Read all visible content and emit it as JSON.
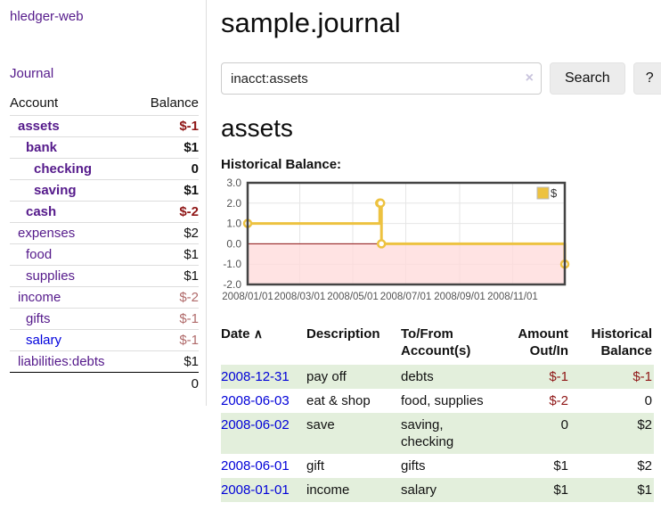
{
  "app": {
    "brand": "hledger-web",
    "nav_journal": "Journal"
  },
  "sidebar": {
    "header": {
      "account": "Account",
      "balance": "Balance"
    },
    "rows": [
      {
        "account": "assets",
        "balance": "$-1"
      },
      {
        "account": "bank",
        "balance": "$1"
      },
      {
        "account": "checking",
        "balance": "0"
      },
      {
        "account": "saving",
        "balance": "$1"
      },
      {
        "account": "cash",
        "balance": "$-2"
      },
      {
        "account": "expenses",
        "balance": "$2"
      },
      {
        "account": "food",
        "balance": "$1"
      },
      {
        "account": "supplies",
        "balance": "$1"
      },
      {
        "account": "income",
        "balance": "$-2"
      },
      {
        "account": "gifts",
        "balance": "$-1"
      },
      {
        "account": "salary",
        "balance": "$-1"
      },
      {
        "account": "liabilities:debts",
        "balance": "$1"
      }
    ],
    "total": "0"
  },
  "header": {
    "title": "sample.journal"
  },
  "search": {
    "value": "inacct:assets",
    "clear_icon": "×",
    "button": "Search",
    "help_button": "?"
  },
  "account_page": {
    "title": "assets",
    "chart_label": "Historical Balance:"
  },
  "chart_data": {
    "type": "line",
    "step": true,
    "title": "Historical Balance",
    "legend": "$",
    "legend_position": "top-right",
    "grid": true,
    "xlim": [
      "2008-01-01",
      "2008-12-31"
    ],
    "ylim": [
      -2.0,
      3.0
    ],
    "x_ticks": [
      "2008/01/01",
      "2008/03/01",
      "2008/05/01",
      "2008/07/01",
      "2008/09/01",
      "2008/11/01"
    ],
    "y_ticks": [
      3.0,
      2.0,
      1.0,
      0.0,
      -1.0,
      -2.0
    ],
    "series": [
      {
        "name": "$",
        "color": "#edc240",
        "points": [
          [
            "2008-01-01",
            1
          ],
          [
            "2008-06-01",
            2
          ],
          [
            "2008-06-02",
            2
          ],
          [
            "2008-06-03",
            0
          ],
          [
            "2008-12-31",
            -1
          ]
        ]
      }
    ],
    "negative_region_color": "#ffd9d9",
    "zero_line_color": "#8b1010",
    "grid_color": "#e6e6e6",
    "border_color": "#444444",
    "tick_label_color": "#545454"
  },
  "register": {
    "sort_icon": "∧",
    "columns": {
      "date": "Date",
      "description": "Description",
      "accounts": "To/From Account(s)",
      "amount": "Amount Out/In",
      "balance": "Historical Balance"
    },
    "rows": [
      {
        "date": "2008-12-31",
        "description": "pay off",
        "accounts": "debts",
        "amount": "$-1",
        "balance": "$-1"
      },
      {
        "date": "2008-06-03",
        "description": "eat & shop",
        "accounts": "food, supplies",
        "amount": "$-2",
        "balance": "0"
      },
      {
        "date": "2008-06-02",
        "description": "save",
        "accounts": "saving, checking",
        "amount": "0",
        "balance": "$2"
      },
      {
        "date": "2008-06-01",
        "description": "gift",
        "accounts": "gifts",
        "amount": "$1",
        "balance": "$2"
      },
      {
        "date": "2008-01-01",
        "description": "income",
        "accounts": "salary",
        "amount": "$1",
        "balance": "$1"
      }
    ]
  }
}
